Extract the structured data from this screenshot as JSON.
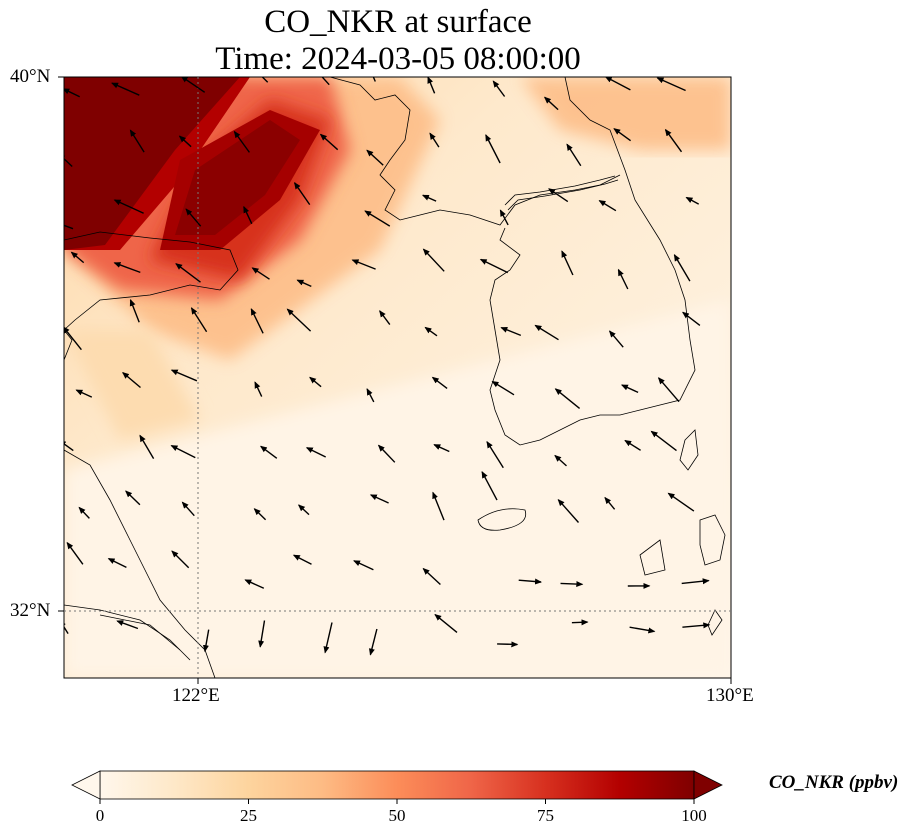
{
  "map": {
    "title_line1": "CO_NKR at surface",
    "title_line2": "Time: 2024-03-05 08:00:00",
    "lat_labels": [
      "40°N",
      "32°N"
    ],
    "lon_labels": [
      "122°E",
      "130°E"
    ],
    "extent": {
      "lon_min": 120,
      "lon_max": 130,
      "lat_min": 31,
      "lat_max": 40
    },
    "gridlines": {
      "lat": [
        32
      ],
      "lon": [
        122
      ],
      "style": "dotted"
    },
    "colormap": "OrRd"
  },
  "colorbar": {
    "label": "CO_NKR (ppbv)",
    "ticks": [
      "0",
      "25",
      "50",
      "75",
      "100"
    ],
    "min": 0,
    "max": 100,
    "extend": "both",
    "colors": [
      "#fff7ec",
      "#fee8c8",
      "#fdd49e",
      "#fdbb84",
      "#fc8d59",
      "#ef6548",
      "#d7301f",
      "#b30000",
      "#7f0000"
    ]
  },
  "field": {
    "description_levels": "high plume NW corner > 100 ppbv; background 5-20 ppbv"
  }
}
